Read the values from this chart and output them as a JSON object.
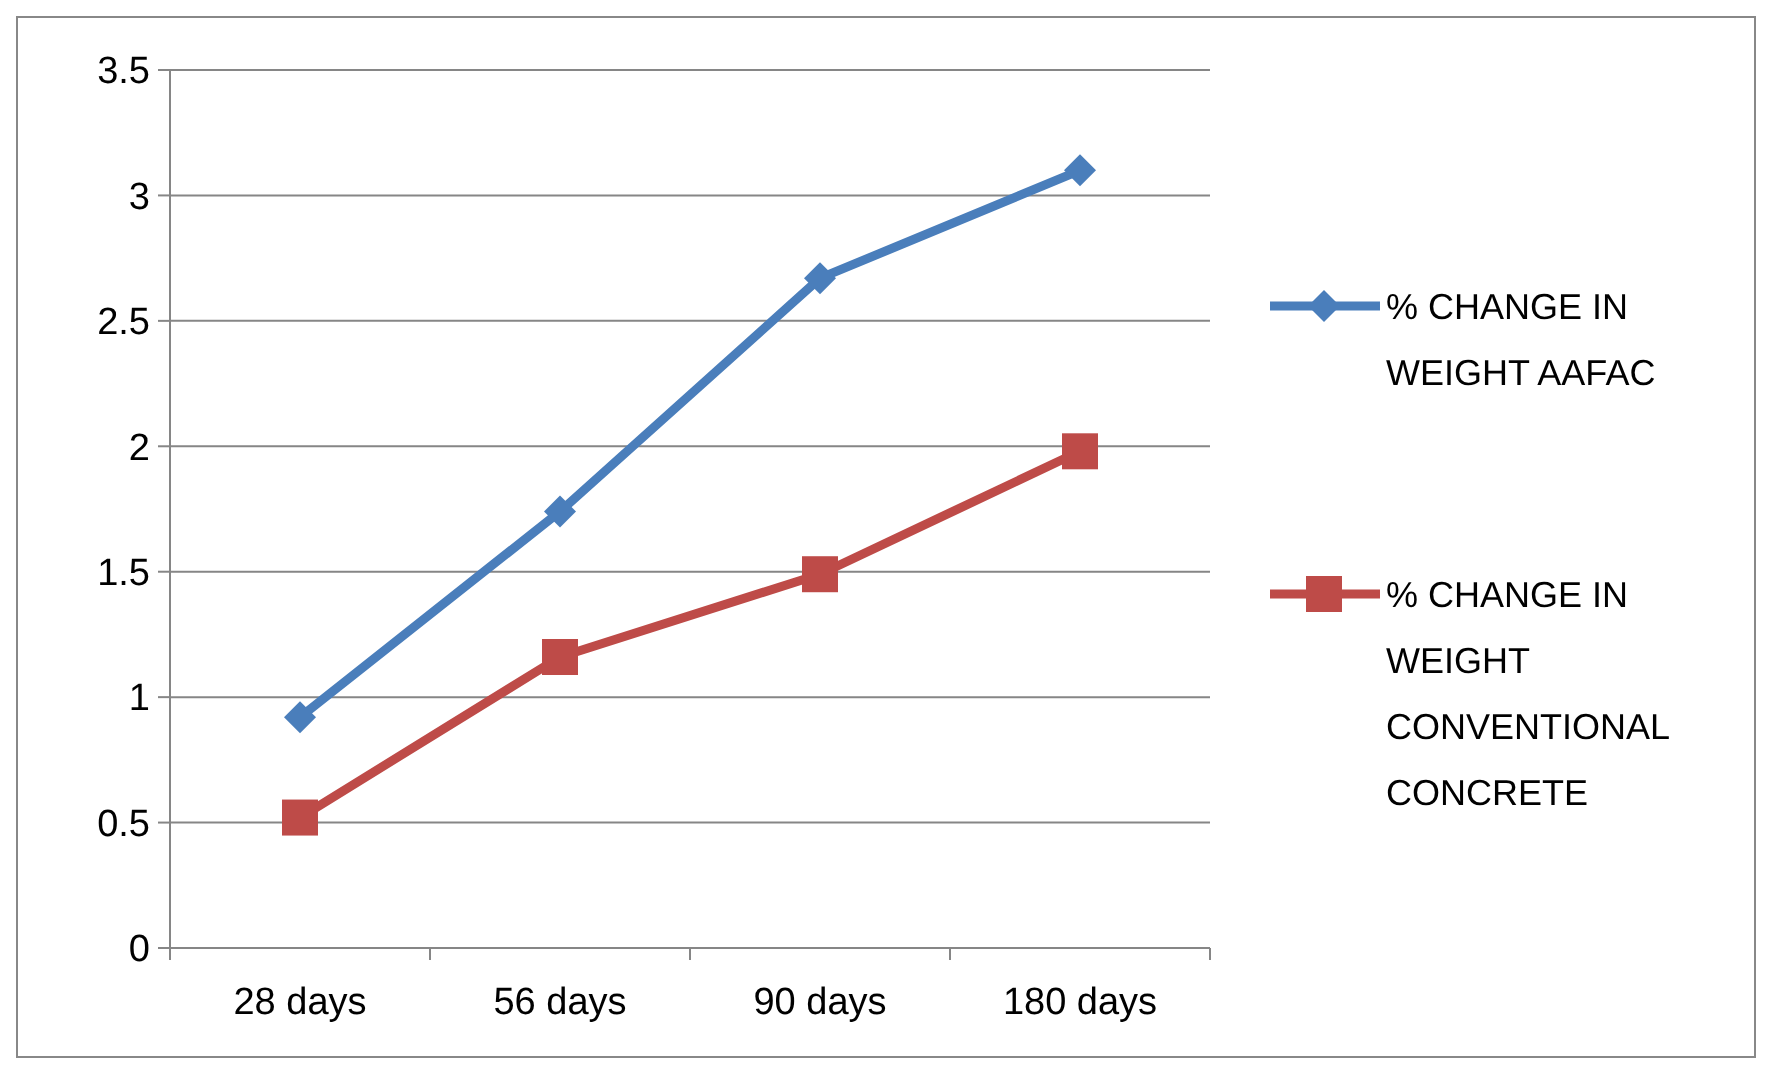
{
  "chart_data": {
    "type": "line",
    "categories": [
      "28 days",
      "56 days",
      "90 days",
      "180 days"
    ],
    "series": [
      {
        "name": "% CHANGE IN WEIGHT AAFAC",
        "color": "#4a7ebb",
        "marker": "diamond",
        "values": [
          0.92,
          1.74,
          2.67,
          3.1
        ]
      },
      {
        "name": "% CHANGE IN WEIGHT CONVENTIONAL CONCRETE",
        "color": "#be4b48",
        "marker": "square",
        "values": [
          0.52,
          1.16,
          1.49,
          1.98
        ]
      }
    ],
    "ylim": [
      0,
      3.5
    ],
    "yticks": [
      0,
      0.5,
      1,
      1.5,
      2,
      2.5,
      3,
      3.5
    ],
    "grid": "y",
    "legend": "right"
  }
}
